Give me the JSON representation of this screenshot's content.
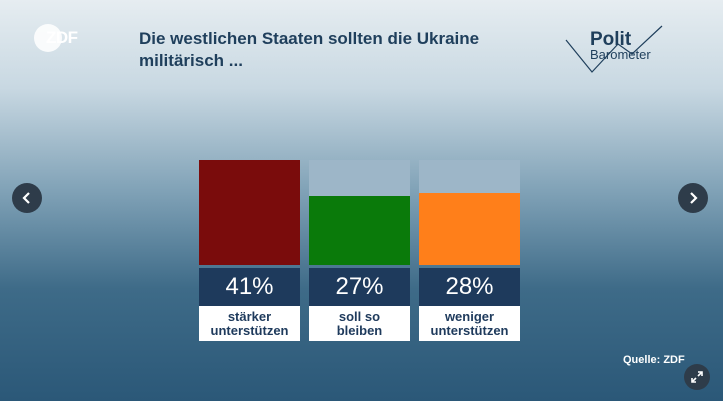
{
  "header": {
    "logo_text": "ZDF",
    "title": "Die westlichen Staaten sollten die Ukraine militärisch ...",
    "brand_line1": "Polit",
    "brand_line2": "Barometer"
  },
  "source": "Quelle: ZDF",
  "icons": {
    "prev": "chevron-left-icon",
    "next": "chevron-right-icon",
    "expand": "expand-icon"
  },
  "chart_data": {
    "type": "bar",
    "title": "Die westlichen Staaten sollten die Ukraine militärisch ...",
    "categories": [
      "stärker\nunterstützen",
      "soll so\nbleiben",
      "weniger\nunterstützen"
    ],
    "values": [
      41,
      27,
      28
    ],
    "value_labels": [
      "41%",
      "27%",
      "28%"
    ],
    "colors": [
      "#7a0c0c",
      "#0a7a0a",
      "#ff7f1a"
    ],
    "ylim": [
      0,
      41
    ],
    "unit": "%"
  }
}
